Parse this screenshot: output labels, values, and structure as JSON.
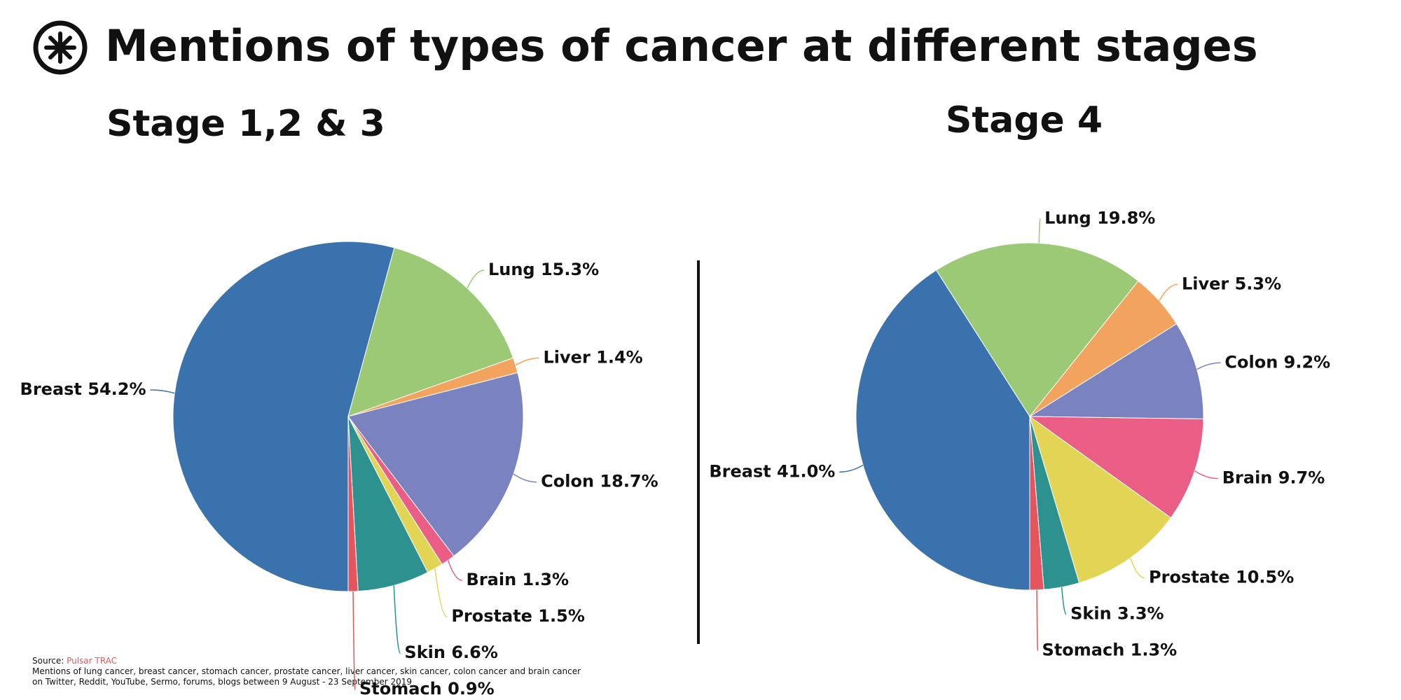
{
  "title": "Mentions of types of cancer at different stages",
  "chart_data": [
    {
      "type": "pie",
      "title": "Stage 1,2 & 3",
      "values": [
        54.2,
        15.3,
        1.4,
        18.7,
        1.3,
        1.5,
        6.6,
        0.9
      ],
      "value_labels": [
        "Breast 54.2%",
        "Lung 15.3%",
        "Liver 1.4%",
        "Colon 18.7%",
        "Brain 1.3%",
        "Prostate 1.5%",
        "Skin 6.6%",
        "Stomach 0.9%"
      ],
      "colors": [
        "#3a72ad",
        "#9bc975",
        "#f2a35e",
        "#7b82c0",
        "#ea5d84",
        "#e2d455",
        "#2d9190",
        "#e4555d"
      ]
    },
    {
      "type": "pie",
      "title": "Stage 4",
      "values": [
        41.0,
        19.8,
        5.3,
        9.2,
        9.7,
        10.5,
        3.3,
        1.3
      ],
      "value_labels": [
        "Breast 41.0%",
        "Lung 19.8%",
        "Liver 5.3%",
        "Colon 9.2%",
        "Brain 9.7%",
        "Prostate 10.5%",
        "Skin 3.3%",
        "Stomach 1.3%"
      ],
      "colors": [
        "#3a72ad",
        "#9bc975",
        "#f2a35e",
        "#7b82c0",
        "#ea5d84",
        "#e2d455",
        "#2d9190",
        "#e4555d"
      ]
    }
  ],
  "footer": {
    "source_label": "Source:",
    "source": "Pulsar TRAC",
    "note": [
      "Mentions of lung cancer, breast cancer, stomach cancer, prostate cancer, liver cancer, skin cancer, colon cancer and brain cancer",
      "on Twitter, Reddit, YouTube, Sermo, forums, blogs between 9 August - 23 September 2019"
    ]
  }
}
